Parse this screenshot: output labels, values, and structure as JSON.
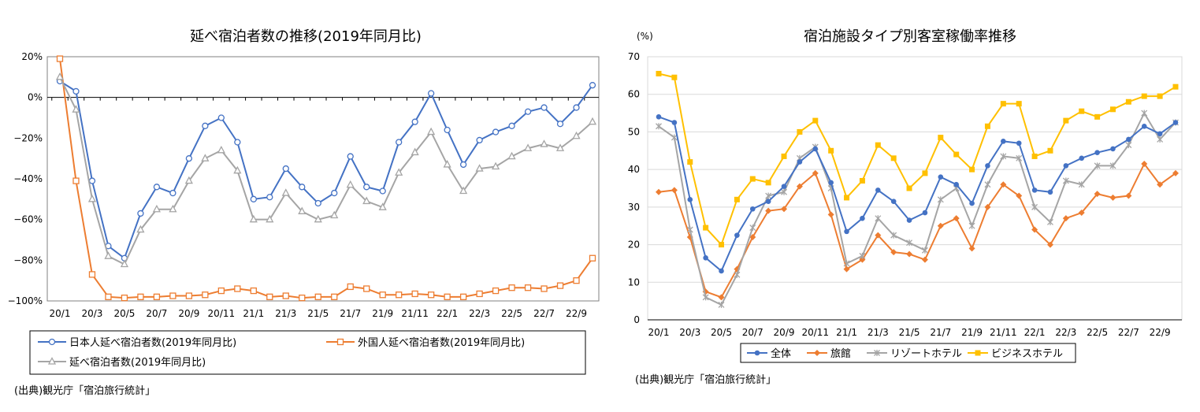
{
  "chart_data": [
    {
      "type": "line",
      "title": "延べ宿泊者数の推移(2019年同月比)",
      "source": "(出典)観光庁「宿泊旅行統計」",
      "ylim": [
        -100,
        20
      ],
      "y_ticks": [
        20,
        0,
        -20,
        -40,
        -60,
        -80,
        -100
      ],
      "y_tick_labels": [
        "20%",
        "0%",
        "−20%",
        "−40%",
        "−60%",
        "−80%",
        "−100%"
      ],
      "x": [
        "20/1",
        "20/2",
        "20/3",
        "20/4",
        "20/5",
        "20/6",
        "20/7",
        "20/8",
        "20/9",
        "20/10",
        "20/11",
        "20/12",
        "21/1",
        "21/2",
        "21/3",
        "21/4",
        "21/5",
        "21/6",
        "21/7",
        "21/8",
        "21/9",
        "21/10",
        "21/11",
        "21/12",
        "22/1",
        "22/2",
        "22/3",
        "22/4",
        "22/5",
        "22/6",
        "22/7",
        "22/8",
        "22/9",
        "22/10"
      ],
      "x_tick_labels": [
        "20/1",
        "20/3",
        "20/5",
        "20/7",
        "20/9",
        "20/11",
        "21/1",
        "21/3",
        "21/5",
        "21/7",
        "21/9",
        "21/11",
        "22/1",
        "22/3",
        "22/5",
        "22/7",
        "22/9"
      ],
      "legend_position": "bottom",
      "series": [
        {
          "name": "日本人延べ宿泊者数(2019年同月比)",
          "color": "#4472c4",
          "marker": "circle",
          "values": [
            8,
            3,
            -41,
            -73,
            -79,
            -57,
            -44,
            -47,
            -30,
            -14,
            -10,
            -22,
            -50,
            -49,
            -35,
            -44,
            -52,
            -47,
            -29,
            -44,
            -46,
            -22,
            -12,
            2,
            -16,
            -33,
            -21,
            -17,
            -14,
            -7,
            -5,
            -13,
            -5,
            6
          ]
        },
        {
          "name": "外国人延べ宿泊者数(2019年同月比)",
          "color": "#ed7d31",
          "marker": "square",
          "values": [
            19,
            -41,
            -87,
            -98,
            -98.5,
            -98,
            -98,
            -97.5,
            -97.5,
            -97,
            -95,
            -94,
            -95,
            -98,
            -97.5,
            -98.5,
            -98,
            -98,
            -93,
            -94,
            -97,
            -97,
            -96.5,
            -97,
            -98,
            -98,
            -96.5,
            -95,
            -93.5,
            -93.5,
            -94,
            -92.5,
            -90,
            -79
          ]
        },
        {
          "name": "延べ宿泊者数(2019年同月比)",
          "color": "#a5a5a5",
          "marker": "triangle",
          "values": [
            10,
            -6,
            -50,
            -78,
            -82,
            -65,
            -55,
            -55,
            -41,
            -30,
            -26,
            -36,
            -60,
            -60,
            -47,
            -56,
            -60,
            -58,
            -43,
            -51,
            -54,
            -37,
            -27,
            -17,
            -33,
            -46,
            -35,
            -34,
            -29,
            -25,
            -23,
            -25,
            -19,
            -12
          ]
        }
      ]
    },
    {
      "type": "line",
      "title": "宿泊施設タイプ別客室稼働率推移",
      "unit_label": "(%)",
      "source": "(出典)観光庁「宿泊旅行統計」",
      "ylim": [
        0,
        70
      ],
      "y_ticks": [
        0,
        10,
        20,
        30,
        40,
        50,
        60,
        70
      ],
      "y_tick_labels": [
        "0",
        "10",
        "20",
        "30",
        "40",
        "50",
        "60",
        "70"
      ],
      "x": [
        "20/1",
        "20/2",
        "20/3",
        "20/4",
        "20/5",
        "20/6",
        "20/7",
        "20/8",
        "20/9",
        "20/10",
        "20/11",
        "20/12",
        "21/1",
        "21/2",
        "21/3",
        "21/4",
        "21/5",
        "21/6",
        "21/7",
        "21/8",
        "21/9",
        "21/10",
        "21/11",
        "21/12",
        "22/1",
        "22/2",
        "22/3",
        "22/4",
        "22/5",
        "22/6",
        "22/7",
        "22/8",
        "22/9",
        "22/10"
      ],
      "x_tick_labels": [
        "20/1",
        "20/3",
        "20/5",
        "20/7",
        "20/9",
        "20/11",
        "21/1",
        "21/3",
        "21/5",
        "21/7",
        "21/9",
        "21/11",
        "22/1",
        "22/3",
        "22/5",
        "22/7",
        "22/9"
      ],
      "grid": true,
      "legend_position": "bottom",
      "series": [
        {
          "name": "全体",
          "color": "#4472c4",
          "marker": "circle",
          "values": [
            54,
            52.5,
            32,
            16.5,
            13,
            22.5,
            29.5,
            31.5,
            35.5,
            42,
            45.5,
            36.5,
            23.5,
            27,
            34.5,
            31.5,
            26.5,
            28.5,
            38,
            36,
            31,
            41,
            47.5,
            47,
            34.5,
            34,
            41,
            43,
            44.5,
            45.5,
            48,
            51.5,
            49.5,
            52.5
          ]
        },
        {
          "name": "旅館",
          "color": "#ed7d31",
          "marker": "diamond",
          "values": [
            34,
            34.5,
            22,
            7.5,
            6,
            13.5,
            22,
            29,
            29.5,
            35.5,
            39,
            28,
            13.5,
            16,
            22.5,
            18,
            17.5,
            16,
            25,
            27,
            19,
            30,
            36,
            33,
            24,
            20,
            27,
            28.5,
            33.5,
            32.5,
            33,
            41.5,
            36,
            39
          ]
        },
        {
          "name": "リゾートホテル",
          "color": "#a5a5a5",
          "marker": "star",
          "values": [
            51.5,
            48.5,
            24,
            6,
            4,
            12,
            24.5,
            33,
            34,
            43,
            46,
            35,
            15,
            17,
            27,
            22.5,
            20.5,
            18.5,
            32,
            35,
            25,
            36,
            43.5,
            43,
            30,
            26,
            37,
            36,
            41,
            41,
            46.5,
            55,
            48,
            52.5
          ]
        },
        {
          "name": "ビジネスホテル",
          "color": "#ffc000",
          "marker": "square",
          "values": [
            65.5,
            64.5,
            42,
            24.5,
            20,
            32,
            37.5,
            36.5,
            43.5,
            50,
            53,
            45,
            32.5,
            37,
            46.5,
            43,
            35,
            39,
            48.5,
            44,
            40,
            51.5,
            57.5,
            57.5,
            43.5,
            45,
            53,
            55.5,
            54,
            56,
            58,
            59.5,
            59.5,
            62
          ]
        }
      ]
    }
  ]
}
